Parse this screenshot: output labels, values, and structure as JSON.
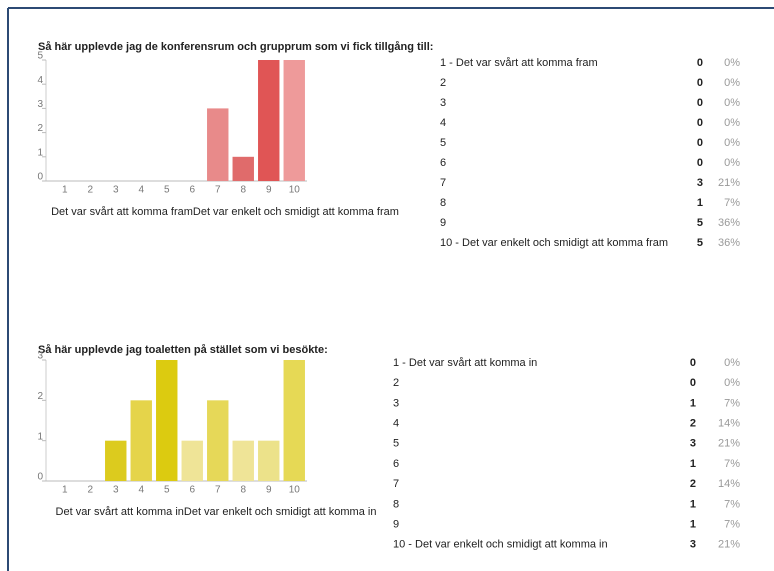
{
  "chart_data": [
    {
      "type": "bar",
      "title": "Så här upplevde jag de konferensrum och grupprum som vi fick tillgång till:",
      "categories": [
        "1",
        "2",
        "3",
        "4",
        "5",
        "6",
        "7",
        "8",
        "9",
        "10"
      ],
      "values": [
        0,
        0,
        0,
        0,
        0,
        0,
        3,
        1,
        5,
        5
      ],
      "colors": [
        "#e88a8a",
        "#e88a8a",
        "#e88a8a",
        "#e88a8a",
        "#e88a8a",
        "#e88a8a",
        "#e88a8a",
        "#e06b6b",
        "#e05555",
        "#ee9a9a"
      ],
      "ylim": [
        0,
        5
      ],
      "yticks": [
        0,
        1,
        2,
        3,
        4,
        5
      ],
      "x_label": "Det var svårt att komma framDet var enkelt och smidigt att komma fram"
    },
    {
      "type": "bar",
      "title": "Så här upplevde jag toaletten på stället som vi besökte:",
      "categories": [
        "1",
        "2",
        "3",
        "4",
        "5",
        "6",
        "7",
        "8",
        "9",
        "10"
      ],
      "values": [
        0,
        0,
        1,
        2,
        3,
        1,
        2,
        1,
        1,
        3
      ],
      "colors": [
        "#dccb1e",
        "#dccb1e",
        "#dccb1e",
        "#e5d44a",
        "#dccb10",
        "#efe497",
        "#e6d858",
        "#efe497",
        "#ece28a",
        "#e6d955"
      ],
      "ylim": [
        0,
        3
      ],
      "yticks": [
        0,
        1,
        2,
        3
      ],
      "x_label": "Det var svårt att komma inDet var enkelt och smidigt att komma in"
    }
  ],
  "tables": [
    {
      "rows": [
        [
          "1 -  Det var svårt att komma fram",
          0,
          "0%"
        ],
        [
          "2",
          0,
          "0%"
        ],
        [
          "3",
          0,
          "0%"
        ],
        [
          "4",
          0,
          "0%"
        ],
        [
          "5",
          0,
          "0%"
        ],
        [
          "6",
          0,
          "0%"
        ],
        [
          "7",
          3,
          "21%"
        ],
        [
          "8",
          1,
          "7%"
        ],
        [
          "9",
          5,
          "36%"
        ],
        [
          "10 - Det var enkelt och smidigt att komma fram",
          5,
          "36%"
        ]
      ]
    },
    {
      "rows": [
        [
          "1 -  Det var svårt att komma in",
          0,
          "0%"
        ],
        [
          "2",
          0,
          "0%"
        ],
        [
          "3",
          1,
          "7%"
        ],
        [
          "4",
          2,
          "14%"
        ],
        [
          "5",
          3,
          "21%"
        ],
        [
          "6",
          1,
          "7%"
        ],
        [
          "7",
          2,
          "14%"
        ],
        [
          "8",
          1,
          "7%"
        ],
        [
          "9",
          1,
          "7%"
        ],
        [
          "10 - Det var enkelt och smidigt att komma in",
          3,
          "21%"
        ]
      ]
    }
  ]
}
